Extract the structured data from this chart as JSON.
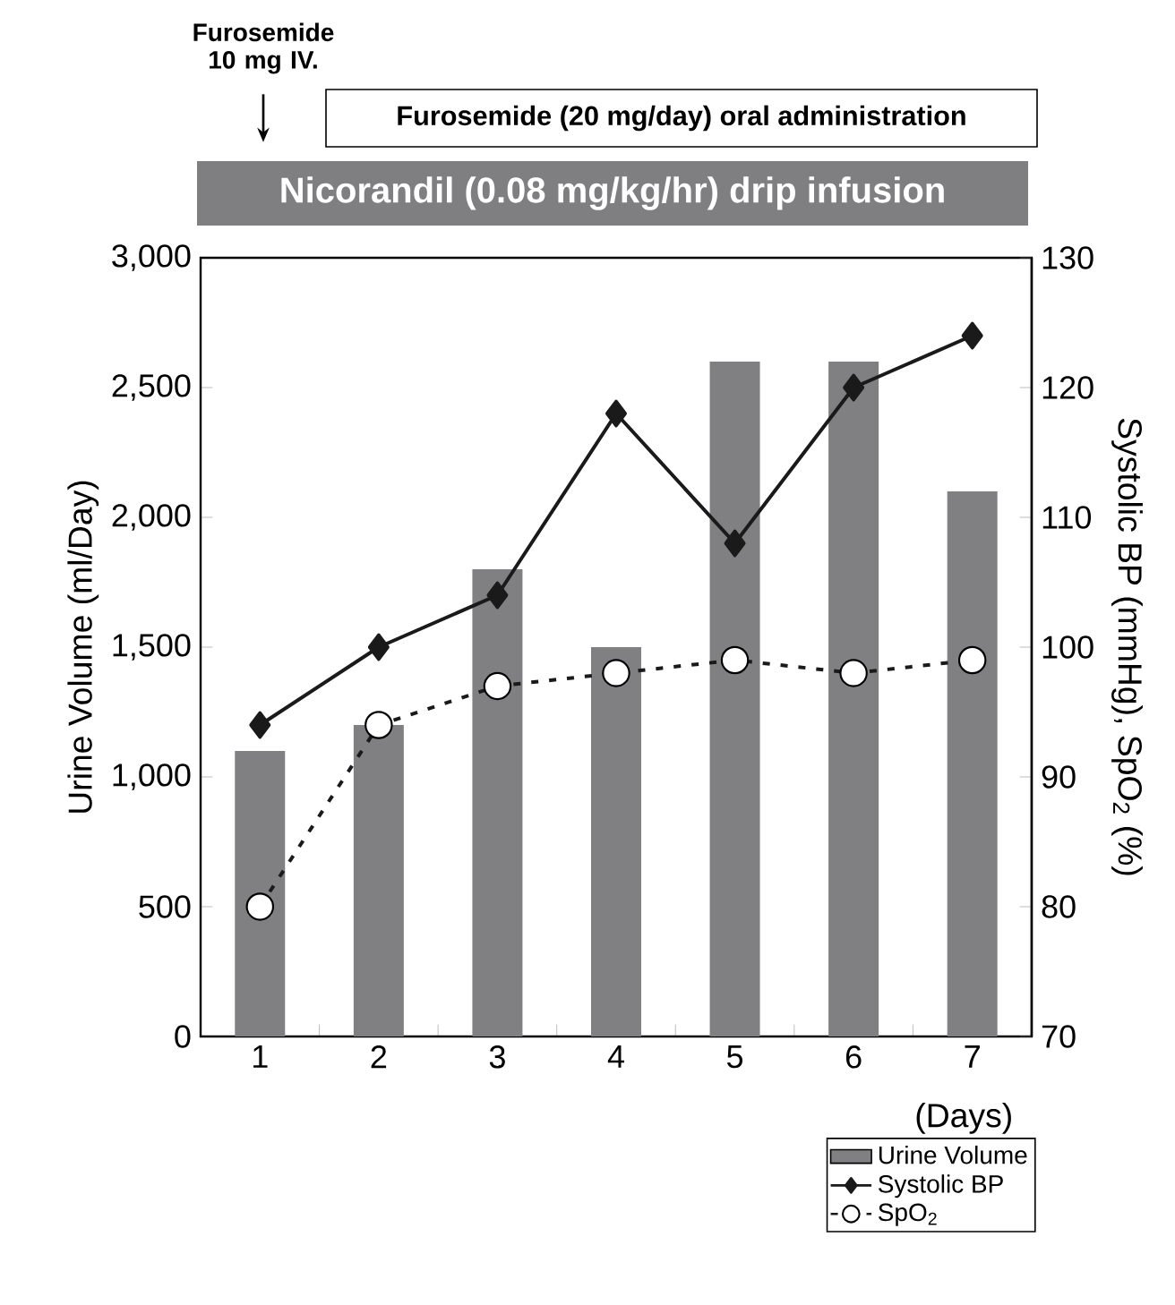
{
  "chart_data": {
    "type": "bar",
    "categories": [
      "1",
      "2",
      "3",
      "4",
      "5",
      "6",
      "7"
    ],
    "xlabel": "(Days)",
    "ylabel": "Urine Volume (ml/Day)",
    "y2label": "Systolic BP (mmHg), SpO$_{2}$ (%)",
    "ylim": [
      0,
      3000
    ],
    "yticks": [
      0,
      500,
      {
        "value": 1000,
        "label": "1,000"
      },
      {
        "value": 1500,
        "label": "1,500"
      },
      {
        "value": 2000,
        "label": "2,000"
      },
      {
        "value": 2500,
        "label": "2,500"
      },
      {
        "value": 3000,
        "label": "3,000"
      }
    ],
    "y2lim": [
      70,
      130
    ],
    "y2ticks": [
      70,
      80,
      90,
      100,
      110,
      120,
      130
    ],
    "legend": "bottom right",
    "annotations": [
      "Furosemide 10 mg IV.",
      "Furosemide (20 mg/day) oral administration",
      "Nicorandil (0.08 mg/kg/hr) drip infusion"
    ],
    "series": [
      {
        "name": "Urine Volume",
        "color": "#808083",
        "values": [
          1100,
          1200,
          1800,
          1500,
          2600,
          2600,
          2100
        ]
      },
      {
        "name": "Systolic BP",
        "type": "line",
        "axis": "y2",
        "color": "#1a1a1a",
        "marker": "diamond",
        "line_style": "solid",
        "values": [
          94,
          100,
          104,
          118,
          108,
          120,
          124
        ]
      },
      {
        "name": "SpO$_{2}$",
        "type": "line",
        "axis": "y2",
        "color": "#1a1a1a",
        "marker": "circle",
        "line_style": "dashed",
        "values": [
          80,
          94,
          97,
          98,
          99,
          98,
          99
        ]
      }
    ]
  }
}
